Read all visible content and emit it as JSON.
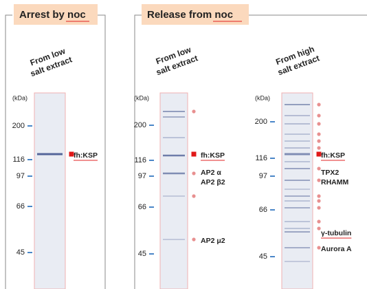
{
  "panels": [
    {
      "title": "Arrest by noc",
      "lanes": [
        {
          "label": [
            "From low",
            "salt extract"
          ],
          "unit": "(kDa)",
          "markers": [
            200,
            116,
            97,
            66,
            45
          ],
          "annotations": [
            "fh:KSP"
          ]
        }
      ]
    },
    {
      "title": "Release from noc",
      "lanes": [
        {
          "label": [
            "From low",
            "salt extract"
          ],
          "unit": "(kDa)",
          "markers": [
            200,
            116,
            97,
            66,
            45
          ],
          "annotations": [
            "fh:KSP",
            "AP2 α",
            "AP2 β2",
            "AP2 μ2"
          ]
        },
        {
          "label": [
            "From high",
            "salt extract"
          ],
          "unit": "(kDa)",
          "markers": [
            200,
            116,
            97,
            66,
            45
          ],
          "annotations": [
            "fh:KSP",
            "TPX2",
            "RHAMM",
            "γ-tubulin",
            "Aurora A"
          ]
        }
      ]
    }
  ]
}
